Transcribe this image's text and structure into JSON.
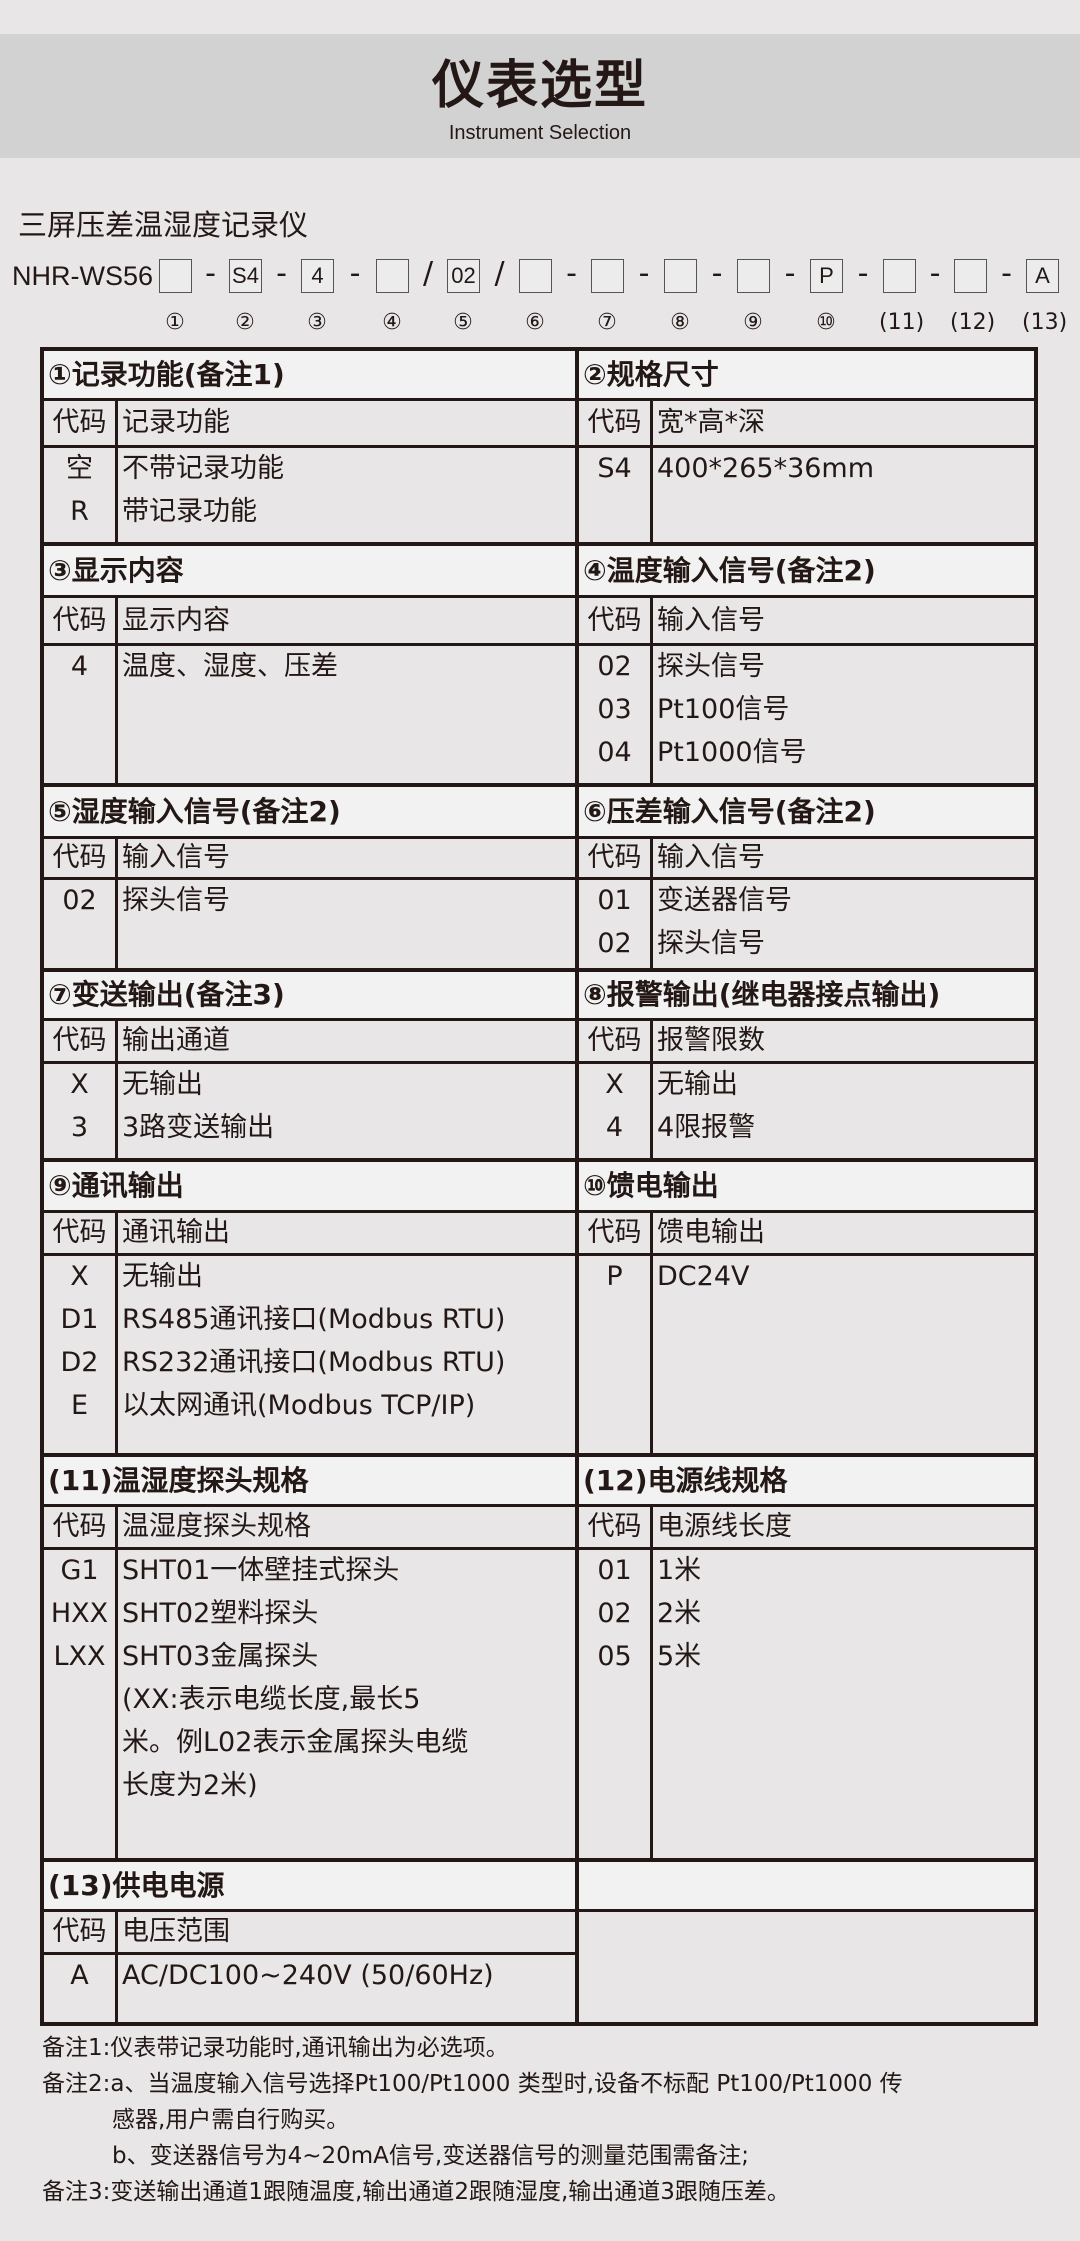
{
  "header": {
    "title": "仪表选型",
    "subtitle": "Instrument Selection"
  },
  "product_name": "三屏压差温湿度记录仪",
  "model": {
    "prefix": "NHR-WS56",
    "boxes": [
      "",
      "S4",
      "4",
      "",
      "02",
      "",
      "",
      "",
      "",
      "P",
      "",
      "",
      "A"
    ],
    "separators": [
      "-",
      "-",
      "-",
      "/",
      "/",
      "-",
      "-",
      "-",
      "-",
      "-",
      "-",
      "-"
    ],
    "numbers": [
      "①",
      "②",
      "③",
      "④",
      "⑤",
      "⑥",
      "⑦",
      "⑧",
      "⑨",
      "⑩",
      "(11)",
      "(12)",
      "(13)"
    ]
  },
  "sections": [
    {
      "title": "①记录功能(备注1)",
      "col1": "代码",
      "col2": "记录功能",
      "rows": [
        [
          "空",
          "不带记录功能"
        ],
        [
          "R",
          "带记录功能"
        ]
      ]
    },
    {
      "title": "②规格尺寸",
      "col1": "代码",
      "col2": "宽*高*深",
      "rows": [
        [
          "S4",
          "400*265*36mm"
        ]
      ]
    },
    {
      "title": "③显示内容",
      "col1": "代码",
      "col2": "显示内容",
      "rows": [
        [
          "4",
          "温度、湿度、压差"
        ]
      ]
    },
    {
      "title": "④温度输入信号(备注2)",
      "col1": "代码",
      "col2": "输入信号",
      "rows": [
        [
          "02",
          "探头信号"
        ],
        [
          "03",
          "Pt100信号"
        ],
        [
          "04",
          "Pt1000信号"
        ]
      ]
    },
    {
      "title": "⑤湿度输入信号(备注2)",
      "col1": "代码",
      "col2": "输入信号",
      "rows": [
        [
          "02",
          "探头信号"
        ]
      ]
    },
    {
      "title": "⑥压差输入信号(备注2)",
      "col1": "代码",
      "col2": "输入信号",
      "rows": [
        [
          "01",
          "变送器信号"
        ],
        [
          "02",
          "探头信号"
        ]
      ]
    },
    {
      "title": "⑦变送输出(备注3)",
      "col1": "代码",
      "col2": "输出通道",
      "rows": [
        [
          "X",
          "无输出"
        ],
        [
          "3",
          "3路变送输出"
        ]
      ]
    },
    {
      "title": "⑧报警输出(继电器接点输出)",
      "col1": "代码",
      "col2": "报警限数",
      "rows": [
        [
          "X",
          "无输出"
        ],
        [
          "4",
          "4限报警"
        ]
      ]
    },
    {
      "title": "⑨通讯输出",
      "col1": "代码",
      "col2": "通讯输出",
      "rows": [
        [
          "X",
          "无输出"
        ],
        [
          "D1",
          "RS485通讯接口(Modbus RTU)"
        ],
        [
          "D2",
          "RS232通讯接口(Modbus RTU)"
        ],
        [
          "E",
          "以太网通讯(Modbus TCP/IP)"
        ]
      ]
    },
    {
      "title": "⑩馈电输出",
      "col1": "代码",
      "col2": "馈电输出",
      "rows": [
        [
          "P",
          "DC24V"
        ]
      ]
    },
    {
      "title": "(11)温湿度探头规格",
      "col1": "代码",
      "col2": "温湿度探头规格",
      "rows": [
        [
          "G1",
          "SHT01一体壁挂式探头"
        ],
        [
          "HXX",
          "SHT02塑料探头"
        ],
        [
          "LXX",
          "SHT03金属探头"
        ],
        [
          "",
          "(XX:表示电缆长度,最长5"
        ],
        [
          "",
          "米。例L02表示金属探头电缆"
        ],
        [
          "",
          "长度为2米)"
        ]
      ]
    },
    {
      "title": "(12)电源线规格",
      "col1": "代码",
      "col2": "电源线长度",
      "rows": [
        [
          "01",
          "1米"
        ],
        [
          "02",
          "2米"
        ],
        [
          "05",
          "5米"
        ]
      ]
    },
    {
      "title": "(13)供电电源",
      "col1": "代码",
      "col2": "电压范围",
      "rows": [
        [
          "A",
          "AC/DC100~240V (50/60Hz)"
        ]
      ]
    }
  ],
  "notes": [
    "备注1:仪表带记录功能时,通讯输出为必选项。",
    "备注2:a、当温度输入信号选择Pt100/Pt1000 类型时,设备不标配 Pt100/Pt1000 传",
    "感器,用户需自行购买。",
    "b、变送器信号为4~20mA信号,变送器信号的测量范围需备注;",
    "备注3:变送输出通道1跟随温度,输出通道2跟随湿度,输出通道3跟随压差。"
  ]
}
